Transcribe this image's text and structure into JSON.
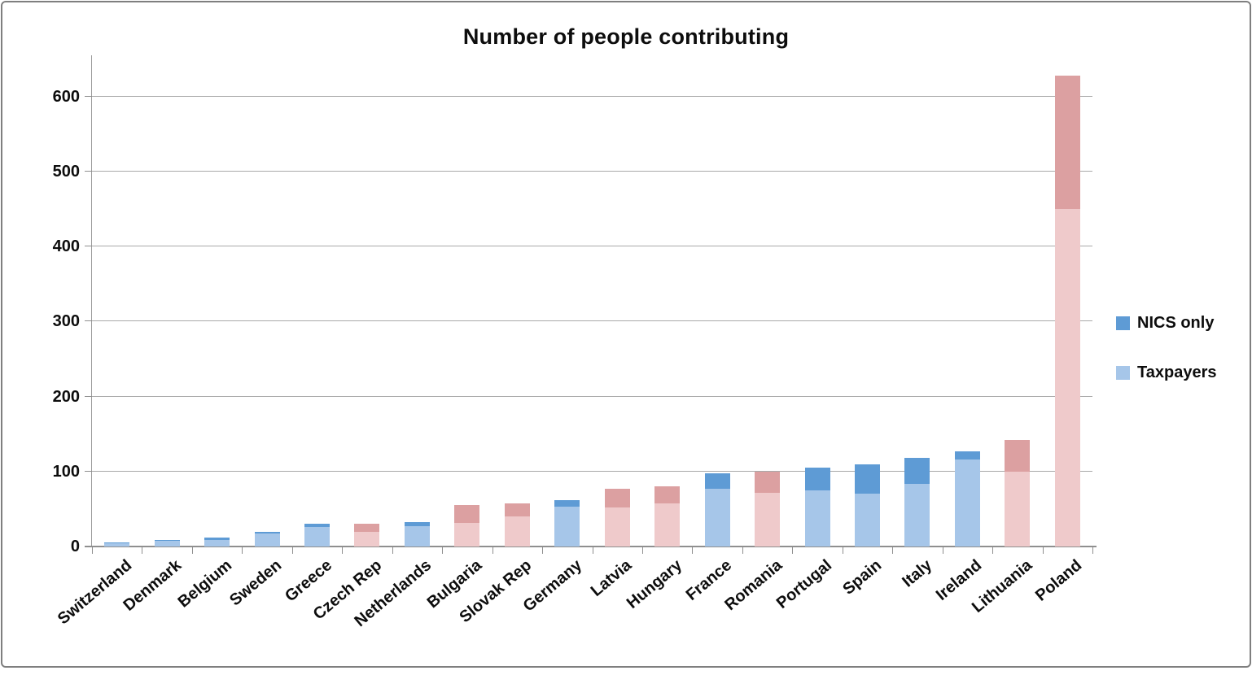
{
  "chart_data": {
    "type": "bar",
    "stacked": true,
    "title": "Number of people contributing",
    "categories": [
      "Switzerland",
      "Denmark",
      "Belgium",
      "Sweden",
      "Greece",
      "Czech Rep",
      "Netherlands",
      "Bulgaria",
      "Slovak Rep",
      "Germany",
      "Latvia",
      "Hungary",
      "France",
      "Romania",
      "Portugal",
      "Spain",
      "Italy",
      "Ireland",
      "Lithuania",
      "Poland"
    ],
    "series": [
      {
        "name": "Taxpayers",
        "values": [
          4,
          8,
          9,
          17,
          26,
          20,
          27,
          32,
          40,
          53,
          52,
          57,
          77,
          72,
          75,
          70,
          84,
          116,
          100,
          450
        ]
      },
      {
        "name": "NICS only",
        "values": [
          1,
          1,
          3,
          3,
          4,
          10,
          6,
          23,
          18,
          9,
          25,
          23,
          21,
          28,
          30,
          40,
          34,
          11,
          42,
          178
        ]
      }
    ],
    "totals": [
      5,
      9,
      12,
      20,
      30,
      30,
      33,
      55,
      58,
      62,
      77,
      80,
      98,
      100,
      105,
      110,
      118,
      127,
      142,
      628
    ],
    "pink_categories": [
      "Czech Rep",
      "Bulgaria",
      "Slovak Rep",
      "Latvia",
      "Hungary",
      "Romania",
      "Lithuania",
      "Poland"
    ],
    "xlabel": "",
    "ylabel": "",
    "yticks": [
      0,
      100,
      200,
      300,
      400,
      500,
      600
    ],
    "ylim": [
      0,
      655
    ],
    "grid": true,
    "legend_position": "right",
    "colors": {
      "taxpayers_blue": "#A6C6E9",
      "nics_blue": "#5E9BD5",
      "taxpayers_pink": "#EFCACB",
      "nics_pink": "#DCA0A1",
      "gridline": "#A9A9A9",
      "axis": "#8F8F8F",
      "border": "#7F7F7F",
      "text": "#0D0D0D"
    }
  }
}
